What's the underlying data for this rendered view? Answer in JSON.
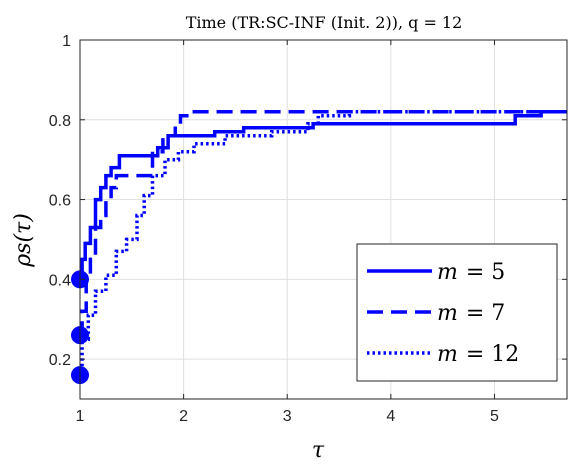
{
  "chart_data": {
    "type": "line",
    "title": "Time (TR:SC-INF (Init. 2)), q = 12",
    "xlabel": "τ",
    "ylabel": "ρs(τ)",
    "xlim": [
      1,
      5.7
    ],
    "ylim": [
      0.1,
      1.0
    ],
    "xticks": [
      "1",
      "2",
      "3",
      "4",
      "5"
    ],
    "yticks": [
      "0.2",
      "0.4",
      "0.6",
      "0.8",
      "1"
    ],
    "grid": true,
    "legend_position": "bottom-right",
    "series": [
      {
        "name": "m = 5",
        "label_main": "m",
        "label_value": "= 5",
        "style": "solid",
        "color": "#0000ff",
        "start_marker": [
          1.0,
          0.4
        ],
        "points": [
          [
            1.0,
            0.4
          ],
          [
            1.02,
            0.4
          ],
          [
            1.02,
            0.45
          ],
          [
            1.05,
            0.45
          ],
          [
            1.05,
            0.49
          ],
          [
            1.1,
            0.49
          ],
          [
            1.1,
            0.53
          ],
          [
            1.15,
            0.53
          ],
          [
            1.15,
            0.6
          ],
          [
            1.2,
            0.6
          ],
          [
            1.2,
            0.63
          ],
          [
            1.25,
            0.63
          ],
          [
            1.25,
            0.66
          ],
          [
            1.3,
            0.66
          ],
          [
            1.3,
            0.68
          ],
          [
            1.38,
            0.68
          ],
          [
            1.38,
            0.71
          ],
          [
            1.75,
            0.71
          ],
          [
            1.75,
            0.73
          ],
          [
            1.85,
            0.73
          ],
          [
            1.85,
            0.76
          ],
          [
            2.3,
            0.76
          ],
          [
            2.3,
            0.77
          ],
          [
            2.58,
            0.77
          ],
          [
            2.58,
            0.78
          ],
          [
            3.25,
            0.78
          ],
          [
            3.25,
            0.79
          ],
          [
            5.2,
            0.79
          ],
          [
            5.2,
            0.81
          ],
          [
            5.45,
            0.81
          ],
          [
            5.45,
            0.82
          ],
          [
            5.7,
            0.82
          ]
        ]
      },
      {
        "name": "m = 7",
        "label_main": "m",
        "label_value": "= 7",
        "style": "dashed",
        "color": "#0000ff",
        "start_marker": [
          1.0,
          0.26
        ],
        "points": [
          [
            1.0,
            0.26
          ],
          [
            1.02,
            0.26
          ],
          [
            1.02,
            0.32
          ],
          [
            1.06,
            0.32
          ],
          [
            1.06,
            0.4
          ],
          [
            1.1,
            0.4
          ],
          [
            1.1,
            0.46
          ],
          [
            1.15,
            0.46
          ],
          [
            1.15,
            0.53
          ],
          [
            1.2,
            0.53
          ],
          [
            1.2,
            0.56
          ],
          [
            1.25,
            0.56
          ],
          [
            1.25,
            0.6
          ],
          [
            1.3,
            0.6
          ],
          [
            1.3,
            0.63
          ],
          [
            1.35,
            0.63
          ],
          [
            1.35,
            0.66
          ],
          [
            1.7,
            0.66
          ],
          [
            1.7,
            0.72
          ],
          [
            1.8,
            0.72
          ],
          [
            1.8,
            0.76
          ],
          [
            1.92,
            0.76
          ],
          [
            1.92,
            0.79
          ],
          [
            1.97,
            0.79
          ],
          [
            1.97,
            0.81
          ],
          [
            2.05,
            0.81
          ],
          [
            2.05,
            0.82
          ],
          [
            5.7,
            0.82
          ]
        ]
      },
      {
        "name": "m = 12",
        "label_main": "m",
        "label_value": "= 12",
        "style": "dotted",
        "color": "#0000ff",
        "start_marker": [
          1.0,
          0.16
        ],
        "points": [
          [
            1.0,
            0.16
          ],
          [
            1.02,
            0.16
          ],
          [
            1.02,
            0.25
          ],
          [
            1.08,
            0.25
          ],
          [
            1.08,
            0.31
          ],
          [
            1.15,
            0.31
          ],
          [
            1.15,
            0.37
          ],
          [
            1.25,
            0.37
          ],
          [
            1.25,
            0.41
          ],
          [
            1.35,
            0.41
          ],
          [
            1.35,
            0.47
          ],
          [
            1.45,
            0.47
          ],
          [
            1.45,
            0.5
          ],
          [
            1.55,
            0.5
          ],
          [
            1.55,
            0.56
          ],
          [
            1.62,
            0.56
          ],
          [
            1.62,
            0.61
          ],
          [
            1.7,
            0.61
          ],
          [
            1.7,
            0.66
          ],
          [
            1.82,
            0.66
          ],
          [
            1.82,
            0.7
          ],
          [
            1.95,
            0.7
          ],
          [
            1.95,
            0.72
          ],
          [
            2.1,
            0.72
          ],
          [
            2.1,
            0.74
          ],
          [
            2.4,
            0.74
          ],
          [
            2.4,
            0.76
          ],
          [
            2.85,
            0.76
          ],
          [
            2.85,
            0.77
          ],
          [
            3.2,
            0.77
          ],
          [
            3.2,
            0.79
          ],
          [
            3.3,
            0.79
          ],
          [
            3.3,
            0.81
          ],
          [
            3.6,
            0.81
          ],
          [
            3.6,
            0.82
          ],
          [
            5.7,
            0.82
          ]
        ]
      }
    ]
  }
}
